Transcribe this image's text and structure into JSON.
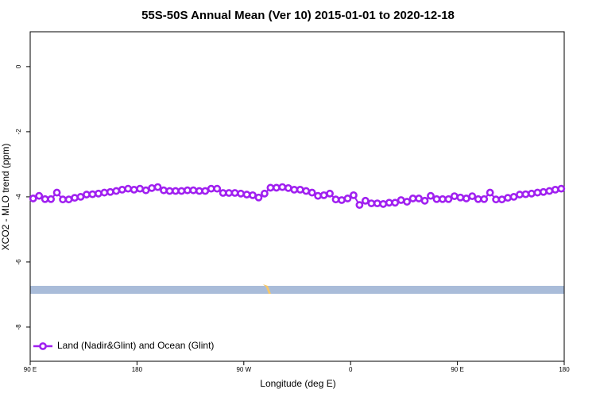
{
  "chart_data": {
    "type": "line",
    "title": "55S-50S Annual Mean (Ver 10)   2015-01-01 to 2020-12-18",
    "xlabel": "Longitude (deg E)",
    "ylabel": "XCO2 - MLO trend (ppm)",
    "xlim": [
      90,
      540
    ],
    "ylim": [
      -9.05,
      1.07
    ],
    "xticks": [
      {
        "value": 90,
        "label": "90 E"
      },
      {
        "value": 180,
        "label": "180"
      },
      {
        "value": 270,
        "label": "90 W"
      },
      {
        "value": 360,
        "label": "0"
      },
      {
        "value": 450,
        "label": "90 E"
      },
      {
        "value": 540,
        "label": "180"
      }
    ],
    "yticks": [
      0,
      -2,
      -4,
      -6,
      -8
    ],
    "legend": "bottom-left",
    "x": [
      92.5,
      97.5,
      102.5,
      107.5,
      112.5,
      117.5,
      122.5,
      127.5,
      132.5,
      137.5,
      142.5,
      147.5,
      152.5,
      157.5,
      162.5,
      167.5,
      172.5,
      177.5,
      182.5,
      187.5,
      192.5,
      197.5,
      202.5,
      207.5,
      212.5,
      217.5,
      222.5,
      227.5,
      232.5,
      237.5,
      242.5,
      247.5,
      252.5,
      257.5,
      262.5,
      267.5,
      272.5,
      277.5,
      282.5,
      287.5,
      292.5,
      297.5,
      302.5,
      307.5,
      312.5,
      317.5,
      322.5,
      327.5,
      332.5,
      337.5,
      342.5,
      347.5,
      352.5,
      357.5,
      362.5,
      367.5,
      372.5,
      377.5,
      382.5,
      387.5,
      392.5,
      397.5,
      402.5,
      407.5,
      412.5,
      417.5,
      422.5,
      427.5,
      432.5,
      437.5,
      442.5,
      447.5,
      452.5,
      457.5,
      462.5,
      467.5,
      472.5,
      477.5,
      482.5,
      487.5,
      492.5,
      497.5,
      502.5,
      507.5,
      512.5,
      517.5,
      522.5,
      527.5,
      532.5,
      537.5
    ],
    "series": [
      {
        "name": "Land (Nadir&Glint) and Ocean (Glint)",
        "color": "#a020f0",
        "values": [
          -4.05,
          -3.97,
          -4.07,
          -4.07,
          -3.87,
          -4.08,
          -4.08,
          -4.03,
          -4.0,
          -3.93,
          -3.92,
          -3.9,
          -3.87,
          -3.85,
          -3.82,
          -3.78,
          -3.75,
          -3.78,
          -3.75,
          -3.8,
          -3.73,
          -3.7,
          -3.8,
          -3.82,
          -3.82,
          -3.82,
          -3.8,
          -3.8,
          -3.82,
          -3.82,
          -3.75,
          -3.75,
          -3.88,
          -3.88,
          -3.88,
          -3.9,
          -3.93,
          -3.95,
          -4.02,
          -3.9,
          -3.72,
          -3.72,
          -3.7,
          -3.73,
          -3.78,
          -3.78,
          -3.82,
          -3.87,
          -3.97,
          -3.95,
          -3.9,
          -4.08,
          -4.1,
          -4.05,
          -3.95,
          -4.25,
          -4.12,
          -4.2,
          -4.2,
          -4.22,
          -4.18,
          -4.18,
          -4.1,
          -4.15,
          -4.05,
          -4.05,
          -4.12,
          -3.97,
          -4.07,
          -4.07,
          -4.07,
          -3.98,
          -4.02,
          -4.05,
          -3.98,
          -4.07,
          -4.07,
          -3.87,
          -4.08,
          -4.08,
          -4.03,
          -4.0,
          -3.93,
          -3.92,
          -3.9,
          -3.87,
          -3.85,
          -3.82,
          -3.78,
          -3.75
        ]
      }
    ]
  }
}
